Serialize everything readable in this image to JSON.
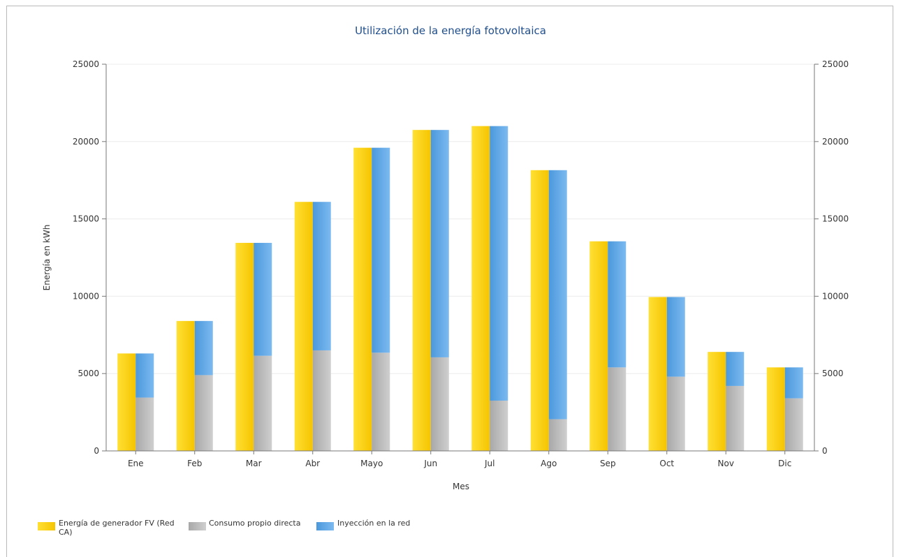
{
  "chart_data": {
    "type": "bar",
    "title": "Utilización de la energía fotovoltaica",
    "xlabel": "Mes",
    "ylabel": "Energía en kWh",
    "ylim": [
      0,
      25000
    ],
    "yticks": [
      "0",
      "5000",
      "10000",
      "15000",
      "20000",
      "25000"
    ],
    "categories": [
      "Ene",
      "Feb",
      "Mar",
      "Abr",
      "Mayo",
      "Jun",
      "Jul",
      "Ago",
      "Sep",
      "Oct",
      "Nov",
      "Dic"
    ],
    "series": [
      {
        "name": "Energía de generador FV (Red CA)",
        "legend_lines": [
          "Energía de generador FV (Red",
          "CA)"
        ],
        "color": "#ffd200",
        "stack": "generation",
        "values": [
          6300,
          8400,
          13450,
          16100,
          19600,
          20750,
          21000,
          18150,
          13550,
          9950,
          6400,
          5400
        ]
      },
      {
        "name": "Consumo propio directa",
        "color": "#b4b4b4",
        "stack": "usage",
        "values": [
          3450,
          4900,
          6150,
          6500,
          6350,
          6050,
          3250,
          2050,
          5400,
          4800,
          4200,
          3400
        ]
      },
      {
        "name": "Inyección en la red",
        "color": "#5aa6e6",
        "stack": "usage",
        "values": [
          2850,
          3500,
          7300,
          9600,
          13250,
          14700,
          17750,
          16100,
          8150,
          5150,
          2200,
          2000
        ]
      }
    ],
    "grid": true,
    "secondary_y_axis": true,
    "legend": "bottom-left"
  }
}
